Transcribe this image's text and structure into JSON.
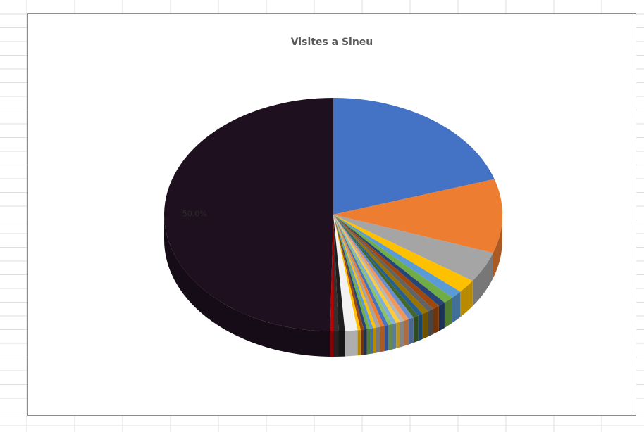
{
  "chart_data": {
    "type": "pie",
    "style": "3d",
    "title": "Visites a Sineu",
    "legend": "none",
    "slices": [
      {
        "value": 20.2,
        "color": "#4472C4"
      },
      {
        "value": 10.3,
        "color": "#ED7D31"
      },
      {
        "value": 4.3,
        "color": "#A5A5A5"
      },
      {
        "value": 1.9,
        "color": "#FFC000"
      },
      {
        "value": 1.1,
        "color": "#5B9BD5"
      },
      {
        "value": 1.0,
        "color": "#70AD47"
      },
      {
        "value": 0.7,
        "color": "#264478"
      },
      {
        "value": 0.7,
        "color": "#9E480E"
      },
      {
        "value": 0.6,
        "color": "#636363"
      },
      {
        "value": 0.6,
        "color": "#997300"
      },
      {
        "value": 0.5,
        "color": "#255E91"
      },
      {
        "value": 0.5,
        "color": "#43682B"
      },
      {
        "value": 0.5,
        "color": "#698ED0"
      },
      {
        "value": 0.5,
        "color": "#F1975A"
      },
      {
        "value": 0.4,
        "color": "#B7B7B7"
      },
      {
        "value": 0.4,
        "color": "#FFCD33"
      },
      {
        "value": 0.4,
        "color": "#7CAFDD"
      },
      {
        "value": 0.4,
        "color": "#8CC168"
      },
      {
        "value": 0.4,
        "color": "#4472C4"
      },
      {
        "value": 0.4,
        "color": "#ED7D31"
      },
      {
        "value": 0.4,
        "color": "#A5A5A5"
      },
      {
        "value": 0.3,
        "color": "#FFC000"
      },
      {
        "value": 0.3,
        "color": "#5B9BD5"
      },
      {
        "value": 0.3,
        "color": "#70AD47"
      },
      {
        "value": 0.3,
        "color": "#264478"
      },
      {
        "value": 0.3,
        "color": "#9E480E"
      },
      {
        "value": 0.3,
        "color": "#FFC000"
      },
      {
        "value": 1.2,
        "color": "#F2F2F2"
      },
      {
        "value": 0.6,
        "color": "#1E1E1E"
      },
      {
        "value": 0.5,
        "color": "#3A2F2F"
      },
      {
        "value": 0.3,
        "color": "#C00000"
      },
      {
        "value": 50.0,
        "color": "#1F1020",
        "label": "50.0%"
      }
    ]
  }
}
